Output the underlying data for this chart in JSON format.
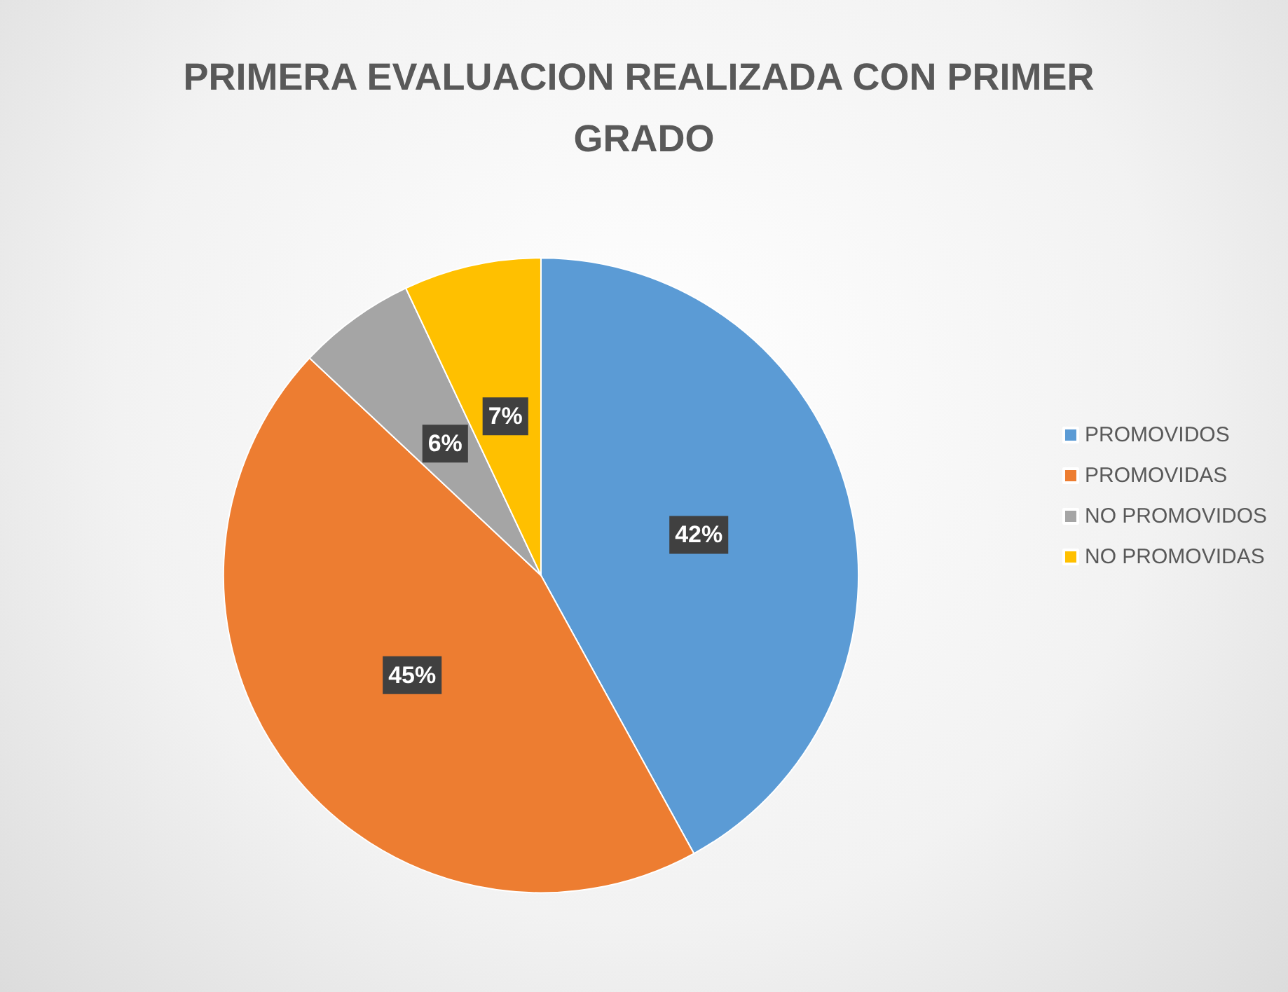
{
  "chart_data": {
    "type": "pie",
    "title": "PRIMERA EVALUACION REALIZADA CON PRIMER GRADO",
    "categories": [
      "PROMOVIDOS",
      "PROMOVIDAS",
      "NO PROMOVIDOS",
      "NO PROMOVIDAS"
    ],
    "values": [
      42,
      45,
      6,
      7
    ],
    "colors": [
      "#5b9bd5",
      "#ed7d31",
      "#a5a5a5",
      "#ffc000"
    ],
    "value_labels": [
      "42%",
      "45%",
      "6%",
      "7%"
    ],
    "legend": "right"
  }
}
